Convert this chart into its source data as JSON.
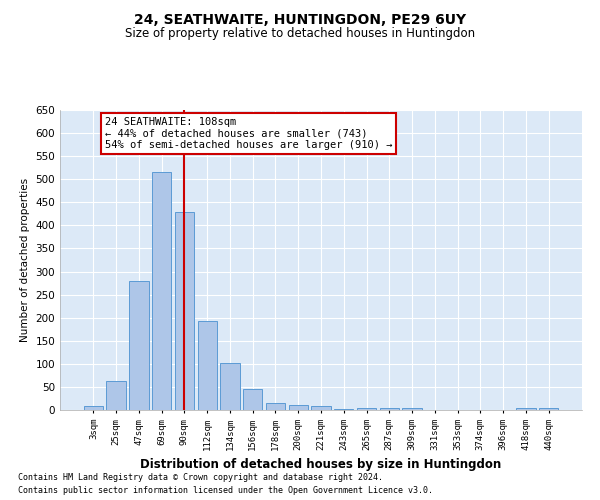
{
  "title1": "24, SEATHWAITE, HUNTINGDON, PE29 6UY",
  "title2": "Size of property relative to detached houses in Huntingdon",
  "xlabel": "Distribution of detached houses by size in Huntingdon",
  "ylabel": "Number of detached properties",
  "categories": [
    "3sqm",
    "25sqm",
    "47sqm",
    "69sqm",
    "90sqm",
    "112sqm",
    "134sqm",
    "156sqm",
    "178sqm",
    "200sqm",
    "221sqm",
    "243sqm",
    "265sqm",
    "287sqm",
    "309sqm",
    "331sqm",
    "353sqm",
    "374sqm",
    "396sqm",
    "418sqm",
    "440sqm"
  ],
  "values": [
    8,
    62,
    280,
    515,
    430,
    193,
    102,
    45,
    15,
    10,
    8,
    2,
    5,
    4,
    4,
    1,
    1,
    0,
    0,
    4,
    4
  ],
  "bar_color": "#aec6e8",
  "bar_edge_color": "#5b9bd5",
  "vline_index": 4,
  "vline_color": "#cc0000",
  "annotation_text": "24 SEATHWAITE: 108sqm\n← 44% of detached houses are smaller (743)\n54% of semi-detached houses are larger (910) →",
  "annotation_box_color": "#ffffff",
  "annotation_box_edge_color": "#cc0000",
  "ylim": [
    0,
    650
  ],
  "yticks": [
    0,
    50,
    100,
    150,
    200,
    250,
    300,
    350,
    400,
    450,
    500,
    550,
    600,
    650
  ],
  "bg_color": "#dce9f7",
  "footer1": "Contains HM Land Registry data © Crown copyright and database right 2024.",
  "footer2": "Contains public sector information licensed under the Open Government Licence v3.0."
}
